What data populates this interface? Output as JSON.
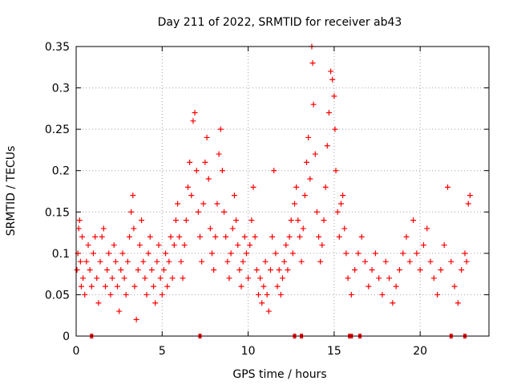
{
  "chart_data": {
    "type": "scatter",
    "title": "Day 211 of 2022, SRMTID for receiver ab43",
    "xlabel": "GPS time / hours",
    "ylabel": "SRMTID / TECUs",
    "xlim": [
      0,
      24
    ],
    "ylim": [
      0,
      0.35
    ],
    "xticks": [
      0,
      5,
      10,
      15,
      20
    ],
    "yticks": [
      0,
      0.05,
      0.1,
      0.15,
      0.2,
      0.25,
      0.3,
      0.35
    ],
    "xtick_labels": [
      "0",
      "5",
      "10",
      "15",
      "20"
    ],
    "ytick_labels": [
      "0",
      "0.05",
      "0.1",
      "0.15",
      "0.2",
      "0.25",
      "0.3",
      "0.35"
    ],
    "grid": true,
    "marker": "+",
    "color": "#ff0000",
    "zero_points_x": [
      0.9,
      7.2,
      12.7,
      13.1,
      15.9,
      16.0,
      16.5,
      21.8,
      22.6
    ],
    "series": [
      {
        "name": "SRMTID",
        "points": [
          [
            0.05,
            0.08
          ],
          [
            0.1,
            0.1
          ],
          [
            0.15,
            0.13
          ],
          [
            0.2,
            0.14
          ],
          [
            0.25,
            0.09
          ],
          [
            0.3,
            0.06
          ],
          [
            0.35,
            0.12
          ],
          [
            0.4,
            0.07
          ],
          [
            0.5,
            0.05
          ],
          [
            0.6,
            0.09
          ],
          [
            0.7,
            0.11
          ],
          [
            0.8,
            0.08
          ],
          [
            0.9,
            0.06
          ],
          [
            1.0,
            0.1
          ],
          [
            1.1,
            0.12
          ],
          [
            1.2,
            0.07
          ],
          [
            1.3,
            0.04
          ],
          [
            1.4,
            0.09
          ],
          [
            1.5,
            0.12
          ],
          [
            1.6,
            0.13
          ],
          [
            1.7,
            0.06
          ],
          [
            1.8,
            0.08
          ],
          [
            1.9,
            0.1
          ],
          [
            2.0,
            0.05
          ],
          [
            2.1,
            0.07
          ],
          [
            2.2,
            0.11
          ],
          [
            2.3,
            0.09
          ],
          [
            2.4,
            0.06
          ],
          [
            2.5,
            0.03
          ],
          [
            2.6,
            0.08
          ],
          [
            2.7,
            0.1
          ],
          [
            2.8,
            0.07
          ],
          [
            2.9,
            0.05
          ],
          [
            3.0,
            0.09
          ],
          [
            3.1,
            0.12
          ],
          [
            3.2,
            0.15
          ],
          [
            3.3,
            0.17
          ],
          [
            3.35,
            0.13
          ],
          [
            3.4,
            0.06
          ],
          [
            3.5,
            0.02
          ],
          [
            3.6,
            0.08
          ],
          [
            3.7,
            0.11
          ],
          [
            3.8,
            0.14
          ],
          [
            3.9,
            0.09
          ],
          [
            4.0,
            0.07
          ],
          [
            4.1,
            0.05
          ],
          [
            4.2,
            0.1
          ],
          [
            4.3,
            0.12
          ],
          [
            4.4,
            0.08
          ],
          [
            4.5,
            0.06
          ],
          [
            4.6,
            0.04
          ],
          [
            4.7,
            0.09
          ],
          [
            4.8,
            0.11
          ],
          [
            4.9,
            0.07
          ],
          [
            5.0,
            0.05
          ],
          [
            5.1,
            0.08
          ],
          [
            5.2,
            0.1
          ],
          [
            5.3,
            0.06
          ],
          [
            5.4,
            0.09
          ],
          [
            5.5,
            0.12
          ],
          [
            5.6,
            0.07
          ],
          [
            5.7,
            0.11
          ],
          [
            5.8,
            0.14
          ],
          [
            5.9,
            0.16
          ],
          [
            6.0,
            0.12
          ],
          [
            6.1,
            0.09
          ],
          [
            6.2,
            0.07
          ],
          [
            6.3,
            0.11
          ],
          [
            6.4,
            0.14
          ],
          [
            6.5,
            0.18
          ],
          [
            6.6,
            0.21
          ],
          [
            6.7,
            0.17
          ],
          [
            6.8,
            0.26
          ],
          [
            6.9,
            0.27
          ],
          [
            7.0,
            0.2
          ],
          [
            7.1,
            0.15
          ],
          [
            7.2,
            0.12
          ],
          [
            7.3,
            0.09
          ],
          [
            7.4,
            0.16
          ],
          [
            7.5,
            0.21
          ],
          [
            7.6,
            0.24
          ],
          [
            7.7,
            0.19
          ],
          [
            7.8,
            0.13
          ],
          [
            7.9,
            0.1
          ],
          [
            8.0,
            0.08
          ],
          [
            8.1,
            0.12
          ],
          [
            8.2,
            0.16
          ],
          [
            8.3,
            0.22
          ],
          [
            8.4,
            0.25
          ],
          [
            8.5,
            0.2
          ],
          [
            8.6,
            0.15
          ],
          [
            8.7,
            0.12
          ],
          [
            8.8,
            0.09
          ],
          [
            8.9,
            0.07
          ],
          [
            9.0,
            0.1
          ],
          [
            9.1,
            0.13
          ],
          [
            9.2,
            0.17
          ],
          [
            9.3,
            0.14
          ],
          [
            9.4,
            0.11
          ],
          [
            9.5,
            0.08
          ],
          [
            9.6,
            0.06
          ],
          [
            9.7,
            0.09
          ],
          [
            9.8,
            0.12
          ],
          [
            9.9,
            0.1
          ],
          [
            10.0,
            0.07
          ],
          [
            10.1,
            0.11
          ],
          [
            10.2,
            0.14
          ],
          [
            10.3,
            0.18
          ],
          [
            10.4,
            0.12
          ],
          [
            10.5,
            0.08
          ],
          [
            10.6,
            0.05
          ],
          [
            10.7,
            0.07
          ],
          [
            10.8,
            0.04
          ],
          [
            10.9,
            0.06
          ],
          [
            11.0,
            0.09
          ],
          [
            11.1,
            0.05
          ],
          [
            11.2,
            0.03
          ],
          [
            11.3,
            0.08
          ],
          [
            11.4,
            0.12
          ],
          [
            11.5,
            0.2
          ],
          [
            11.6,
            0.1
          ],
          [
            11.7,
            0.06
          ],
          [
            11.8,
            0.08
          ],
          [
            11.9,
            0.05
          ],
          [
            12.0,
            0.07
          ],
          [
            12.1,
            0.09
          ],
          [
            12.2,
            0.11
          ],
          [
            12.3,
            0.08
          ],
          [
            12.4,
            0.12
          ],
          [
            12.5,
            0.14
          ],
          [
            12.6,
            0.1
          ],
          [
            12.7,
            0.16
          ],
          [
            12.8,
            0.18
          ],
          [
            12.9,
            0.14
          ],
          [
            13.0,
            0.12
          ],
          [
            13.1,
            0.09
          ],
          [
            13.2,
            0.13
          ],
          [
            13.3,
            0.17
          ],
          [
            13.4,
            0.21
          ],
          [
            13.5,
            0.24
          ],
          [
            13.6,
            0.19
          ],
          [
            13.7,
            0.35
          ],
          [
            13.75,
            0.33
          ],
          [
            13.8,
            0.28
          ],
          [
            13.9,
            0.22
          ],
          [
            14.0,
            0.15
          ],
          [
            14.1,
            0.12
          ],
          [
            14.2,
            0.09
          ],
          [
            14.3,
            0.11
          ],
          [
            14.4,
            0.14
          ],
          [
            14.5,
            0.18
          ],
          [
            14.6,
            0.23
          ],
          [
            14.7,
            0.27
          ],
          [
            14.8,
            0.32
          ],
          [
            14.9,
            0.31
          ],
          [
            15.0,
            0.29
          ],
          [
            15.05,
            0.25
          ],
          [
            15.1,
            0.2
          ],
          [
            15.2,
            0.15
          ],
          [
            15.3,
            0.12
          ],
          [
            15.4,
            0.16
          ],
          [
            15.5,
            0.17
          ],
          [
            15.6,
            0.13
          ],
          [
            15.7,
            0.1
          ],
          [
            15.8,
            0.07
          ],
          [
            16.0,
            0.05
          ],
          [
            16.2,
            0.08
          ],
          [
            16.4,
            0.1
          ],
          [
            16.6,
            0.12
          ],
          [
            16.8,
            0.09
          ],
          [
            17.0,
            0.06
          ],
          [
            17.2,
            0.08
          ],
          [
            17.4,
            0.1
          ],
          [
            17.6,
            0.07
          ],
          [
            17.8,
            0.05
          ],
          [
            18.0,
            0.09
          ],
          [
            18.2,
            0.07
          ],
          [
            18.4,
            0.04
          ],
          [
            18.6,
            0.06
          ],
          [
            18.8,
            0.08
          ],
          [
            19.0,
            0.1
          ],
          [
            19.2,
            0.12
          ],
          [
            19.4,
            0.09
          ],
          [
            19.6,
            0.14
          ],
          [
            19.8,
            0.1
          ],
          [
            20.0,
            0.08
          ],
          [
            20.2,
            0.11
          ],
          [
            20.4,
            0.13
          ],
          [
            20.6,
            0.09
          ],
          [
            20.8,
            0.07
          ],
          [
            21.0,
            0.05
          ],
          [
            21.2,
            0.08
          ],
          [
            21.4,
            0.11
          ],
          [
            21.6,
            0.18
          ],
          [
            21.8,
            0.09
          ],
          [
            22.0,
            0.06
          ],
          [
            22.2,
            0.04
          ],
          [
            22.4,
            0.08
          ],
          [
            22.6,
            0.1
          ],
          [
            22.7,
            0.09
          ],
          [
            22.8,
            0.16
          ],
          [
            22.9,
            0.17
          ]
        ]
      }
    ]
  }
}
